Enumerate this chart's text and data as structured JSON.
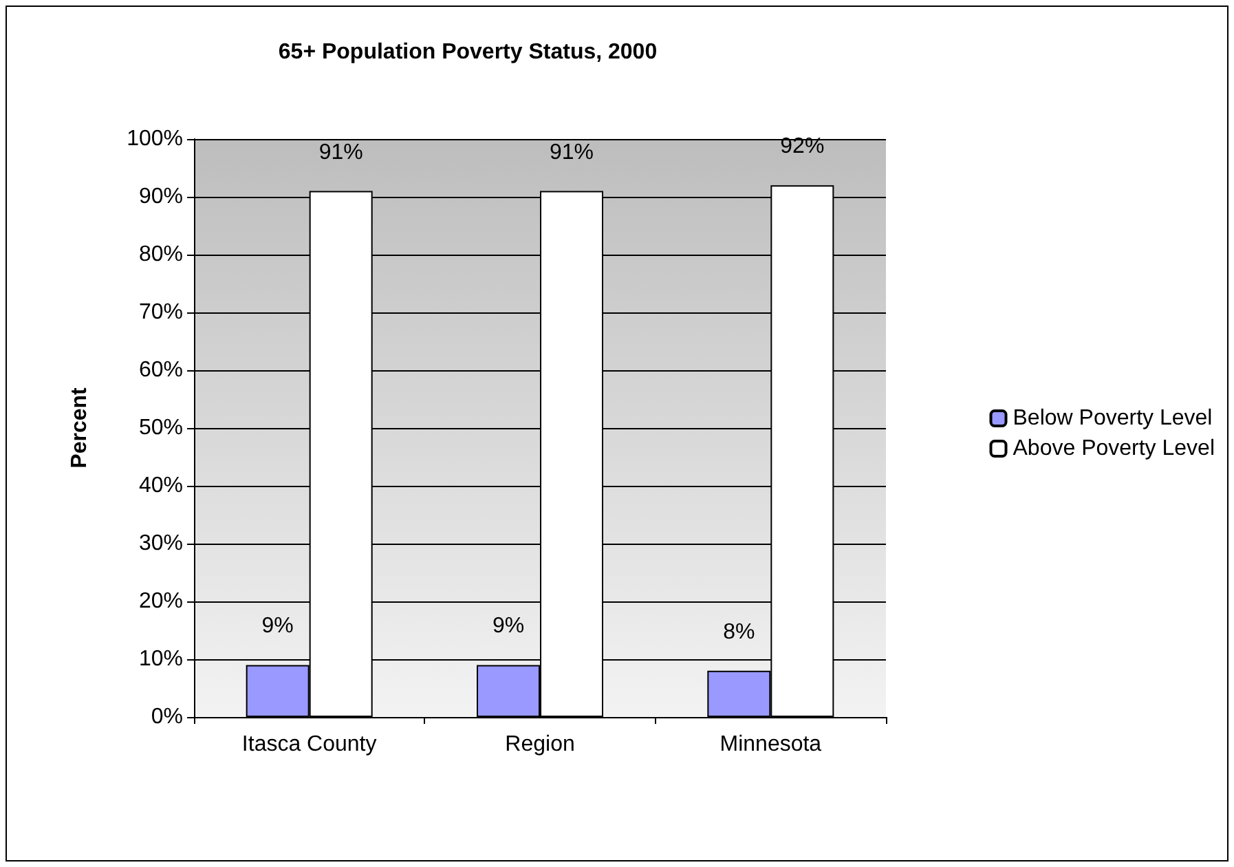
{
  "chart_data": {
    "type": "bar",
    "title": "65+ Population Poverty Status, 2000",
    "ylabel": "Percent",
    "categories": [
      "Itasca County",
      "Region",
      "Minnesota"
    ],
    "series": [
      {
        "name": "Below Poverty Level",
        "color": "#9999ff",
        "values": [
          9,
          9,
          8
        ],
        "value_labels": [
          "9%",
          "9%",
          "8%"
        ]
      },
      {
        "name": "Above Poverty Level",
        "color": "#ffffff",
        "values": [
          91,
          91,
          92
        ],
        "value_labels": [
          "91%",
          "91%",
          "92%"
        ]
      }
    ],
    "ylim": [
      0,
      100
    ],
    "yticks": [
      {
        "value": 0,
        "label": "0%"
      },
      {
        "value": 10,
        "label": "10%"
      },
      {
        "value": 20,
        "label": "20%"
      },
      {
        "value": 30,
        "label": "30%"
      },
      {
        "value": 40,
        "label": "40%"
      },
      {
        "value": 50,
        "label": "50%"
      },
      {
        "value": 60,
        "label": "60%"
      },
      {
        "value": 70,
        "label": "70%"
      },
      {
        "value": 80,
        "label": "80%"
      },
      {
        "value": 90,
        "label": "90%"
      },
      {
        "value": 100,
        "label": "100%"
      }
    ],
    "grid": "y",
    "legend": "right"
  }
}
